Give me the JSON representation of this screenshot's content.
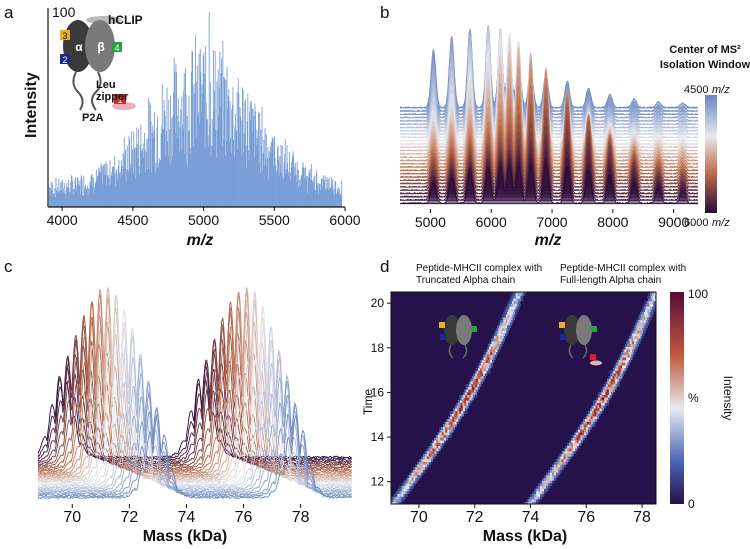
{
  "panels": {
    "a": "a",
    "b": "b",
    "c": "c",
    "d": "d"
  },
  "chart_data": [
    {
      "panel": "a",
      "type": "line",
      "xlabel": "m/z",
      "ylabel": "Intensity",
      "xlim": [
        3900,
        6000
      ],
      "ylim": [
        0,
        100
      ],
      "x_ticks": [
        "4000",
        "4500",
        "5000",
        "5500",
        "6000"
      ],
      "y_ticks": [
        "100"
      ],
      "peak_max_mz": 5040,
      "peak_max_value": 100,
      "envelope_center_mz": 5000,
      "envelope_peak_value": 65,
      "inset": {
        "hclip": "hCLIP",
        "alpha": "α",
        "beta": "β",
        "leu": "Leu",
        "zipper": "zipper",
        "p2a": "P2A",
        "badge_alpha": "2",
        "badge_alpha_top": "3",
        "badge_beta": "4",
        "badge_tail": "1"
      }
    },
    {
      "panel": "b",
      "type": "area",
      "xlabel": "m/z",
      "xlim": [
        4500,
        9400
      ],
      "x_ticks": [
        "5000",
        "6000",
        "7000",
        "8000",
        "9000"
      ],
      "colorbar_title_1": "Center of MS²",
      "colorbar_title_2": "Isolation Window",
      "colorbar_top": "4500",
      "colorbar_bottom": "6000",
      "colorbar_unit": "m/z",
      "envelope_peaks_mz": [
        5050,
        5350,
        5650,
        5950,
        6150,
        6300,
        6450,
        6650,
        6900,
        7250,
        7600,
        7950,
        8350,
        8750,
        9150
      ],
      "trace_count": 30
    },
    {
      "panel": "c",
      "type": "area",
      "xlabel": "Mass (kDa)",
      "xlim": [
        68.8,
        79.8
      ],
      "x_ticks": [
        "70",
        "72",
        "74",
        "76",
        "78"
      ],
      "envelope_centers_kda": [
        71.3,
        76.2
      ],
      "trace_count": 30
    },
    {
      "panel": "d",
      "type": "heatmap",
      "xlabel": "Mass (kDa)",
      "ylabel": "Time",
      "xlim": [
        69.0,
        78.5
      ],
      "ylim": [
        11,
        20.5
      ],
      "x_ticks": [
        "70",
        "72",
        "74",
        "76",
        "78"
      ],
      "y_ticks": [
        "12",
        "14",
        "16",
        "18",
        "20"
      ],
      "title_left_1": "Peptide-MHCII complex with",
      "title_left_2": "Truncated Alpha chain",
      "title_right_1": "Peptide-MHCII complex with",
      "title_right_2": "Full-length Alpha chain",
      "colorbar_label": "Intensity",
      "colorbar_unit": "%",
      "colorbar_max": "100",
      "colorbar_min": "0",
      "band_truncated": {
        "mass_at_time_11": 69.1,
        "mass_at_time_20": 73.4
      },
      "band_full_length": {
        "mass_at_time_11": 74.0,
        "mass_at_time_20": 78.3
      }
    }
  ]
}
